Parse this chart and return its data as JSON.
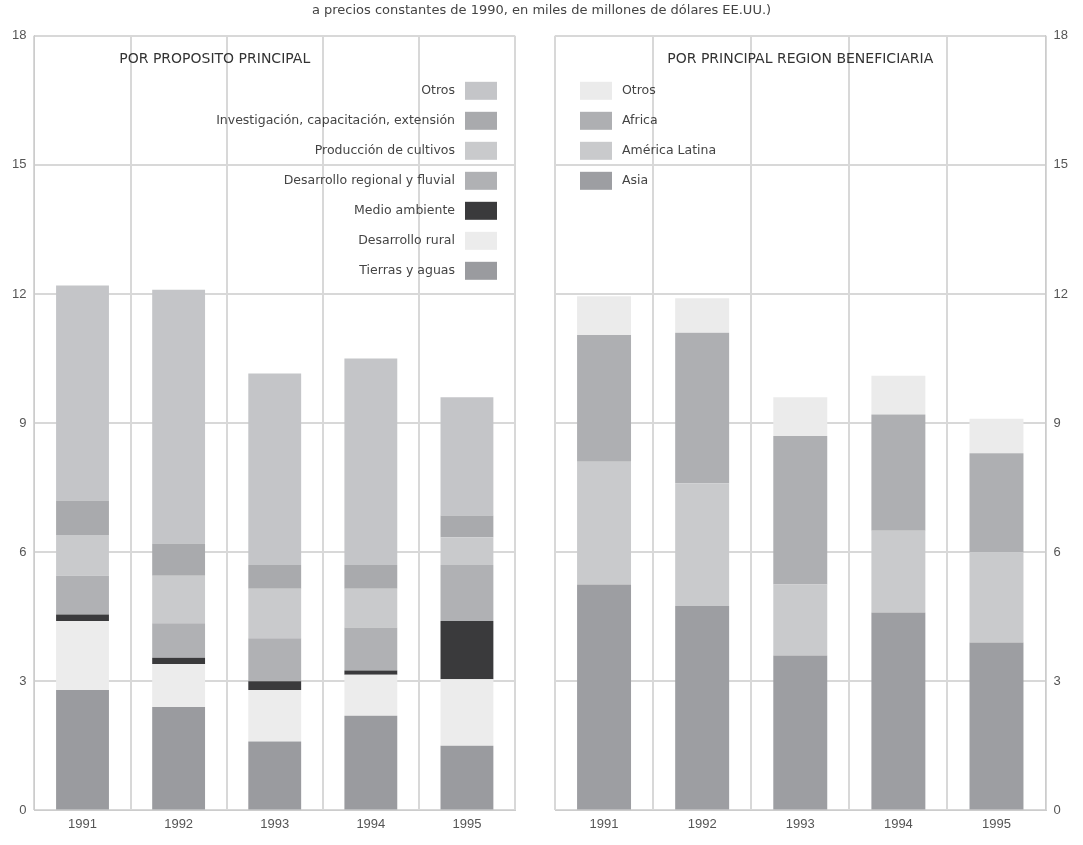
{
  "chart_data": [
    {
      "type": "bar",
      "title": "POR PROPOSITO PRINCIPAL",
      "subtitle": "a precios constantes de 1990, en miles de millones de dólares EE.UU.)",
      "categories": [
        "1991",
        "1992",
        "1993",
        "1994",
        "1995"
      ],
      "stacked": true,
      "ylim": [
        0,
        18
      ],
      "yticks": [
        0,
        3,
        6,
        9,
        12,
        15,
        18
      ],
      "grid": true,
      "legend": "top right",
      "series": [
        {
          "name": "Tierras y aguas",
          "color": "#9a9b9f",
          "values": [
            2.8,
            2.4,
            1.6,
            2.2,
            1.5
          ]
        },
        {
          "name": "Desarrollo rural",
          "color": "#ececec",
          "values": [
            1.6,
            1.0,
            1.2,
            0.95,
            1.55
          ]
        },
        {
          "name": "Medio ambiente",
          "color": "#3a3a3c",
          "values": [
            0.15,
            0.15,
            0.2,
            0.1,
            1.35
          ]
        },
        {
          "name": "Desarrollo regional y fluvial",
          "color": "#b0b1b4",
          "values": [
            0.9,
            0.8,
            1.0,
            1.0,
            1.3
          ]
        },
        {
          "name": "Producción de cultivos",
          "color": "#c9cacc",
          "values": [
            0.95,
            1.1,
            1.15,
            0.9,
            0.65
          ]
        },
        {
          "name": "Investigación, capacitación, extensión",
          "color": "#a9aaad",
          "values": [
            0.8,
            0.75,
            0.55,
            0.55,
            0.5
          ]
        },
        {
          "name": "Otros",
          "color": "#c4c5c8",
          "values": [
            5.0,
            5.9,
            4.45,
            4.8,
            2.75
          ]
        }
      ]
    },
    {
      "type": "bar",
      "title": "POR PRINCIPAL REGION BENEFICIARIA",
      "categories": [
        "1991",
        "1992",
        "1993",
        "1994",
        "1995"
      ],
      "stacked": true,
      "ylim": [
        0,
        18
      ],
      "yticks": [
        0,
        3,
        6,
        9,
        12,
        15,
        18
      ],
      "grid": true,
      "legend": "top left",
      "series": [
        {
          "name": "Asia",
          "color": "#9d9ea2",
          "values": [
            5.25,
            4.75,
            3.6,
            4.6,
            3.9
          ]
        },
        {
          "name": "América Latina",
          "color": "#c9cacc",
          "values": [
            2.85,
            2.85,
            1.65,
            1.9,
            2.1
          ]
        },
        {
          "name": "Africa",
          "color": "#aeafb2",
          "values": [
            2.95,
            3.5,
            3.45,
            2.7,
            2.3
          ]
        },
        {
          "name": "Otros",
          "color": "#ebebeb",
          "values": [
            0.9,
            0.8,
            0.9,
            0.9,
            0.8
          ]
        }
      ]
    }
  ]
}
